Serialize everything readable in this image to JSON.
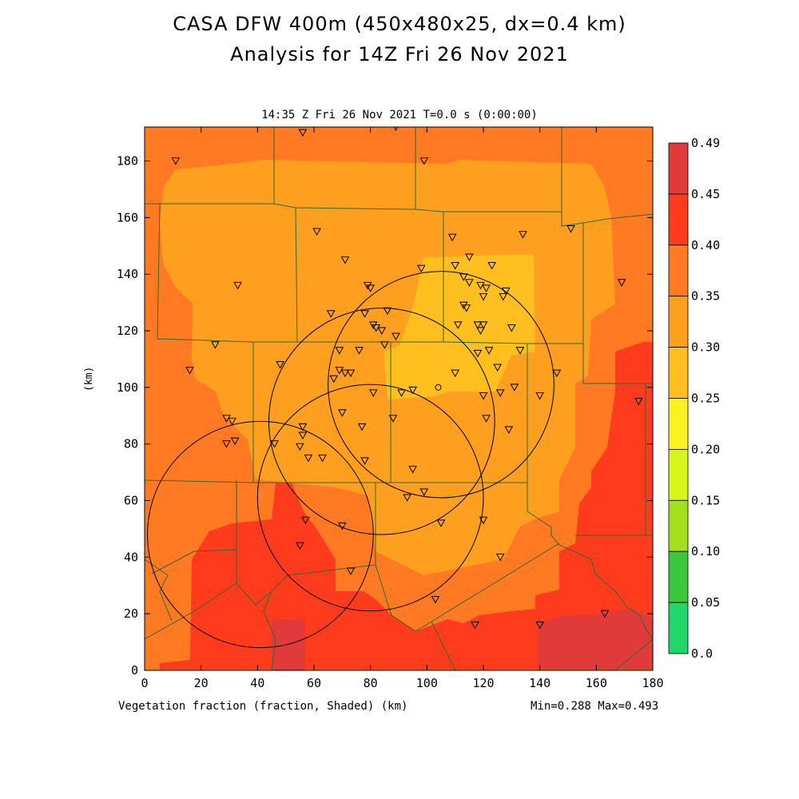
{
  "title_line1": "CASA DFW 400m (450x480x25, dx=0.4 km)",
  "title_line2": "Analysis for 14Z Fri 26 Nov 2021",
  "subtitle": "14:35 Z Fri 26 Nov 2021   T=0.0 s (0:00:00)",
  "footer_left": "Vegetation fraction (fraction, Shaded)  (km)",
  "footer_right": "Min=0.288 Max=0.493",
  "y_axis_label": "(km)",
  "x_ticks": [
    "0",
    "20",
    "40",
    "60",
    "80",
    "100",
    "120",
    "140",
    "160",
    "180"
  ],
  "y_ticks": [
    "0",
    "20",
    "40",
    "60",
    "80",
    "100",
    "120",
    "140",
    "160",
    "180"
  ],
  "colorbar": {
    "labels": [
      "0.49",
      "0.45",
      "0.40",
      "0.35",
      "0.30",
      "0.25",
      "0.20",
      "0.15",
      "0.10",
      "0.05",
      "0.0"
    ],
    "colors": [
      "#e03a3a",
      "#ff3b1e",
      "#ff7a22",
      "#ff9f1f",
      "#ffbf1f",
      "#fff020",
      "#d8f51c",
      "#a3e01e",
      "#3cc83c",
      "#22d66a",
      "#22e69a"
    ]
  },
  "field_colors": {
    "c035_040": "#ff7a22",
    "c030_035": "#ff9f1f",
    "c025_030": "#ffbf1f",
    "c040_045": "#ff3b1e",
    "c045_049": "#e03a3a",
    "county_lines": "#2e6b2e"
  },
  "radar_sites": [
    {
      "x": 105,
      "y": 101,
      "r": 40
    },
    {
      "x": 84,
      "y": 88,
      "r": 40
    },
    {
      "x": 41,
      "y": 48,
      "r": 40
    },
    {
      "x": 80,
      "y": 61,
      "r": 40
    }
  ],
  "stations": [
    [
      11,
      180
    ],
    [
      56,
      190
    ],
    [
      89,
      192
    ],
    [
      99,
      180
    ],
    [
      61,
      155
    ],
    [
      71,
      145
    ],
    [
      33,
      136
    ],
    [
      109,
      153
    ],
    [
      134,
      154
    ],
    [
      151,
      156
    ],
    [
      98,
      142
    ],
    [
      110,
      143
    ],
    [
      115,
      146
    ],
    [
      123,
      143
    ],
    [
      113,
      139
    ],
    [
      115,
      137
    ],
    [
      119,
      136
    ],
    [
      121,
      135
    ],
    [
      127,
      132
    ],
    [
      128,
      134
    ],
    [
      120,
      132
    ],
    [
      113,
      129
    ],
    [
      114,
      128
    ],
    [
      79,
      136
    ],
    [
      80,
      135
    ],
    [
      66,
      126
    ],
    [
      78,
      126
    ],
    [
      86,
      127
    ],
    [
      82,
      121
    ],
    [
      81,
      122
    ],
    [
      84,
      120
    ],
    [
      111,
      122
    ],
    [
      118,
      122
    ],
    [
      120,
      122
    ],
    [
      119,
      120
    ],
    [
      130,
      121
    ],
    [
      25,
      115
    ],
    [
      69,
      113
    ],
    [
      76,
      113
    ],
    [
      85,
      115
    ],
    [
      89,
      118
    ],
    [
      122,
      113
    ],
    [
      118,
      112
    ],
    [
      133,
      113
    ],
    [
      169,
      137
    ],
    [
      16,
      106
    ],
    [
      48,
      108
    ],
    [
      69,
      106
    ],
    [
      67,
      103
    ],
    [
      71,
      105
    ],
    [
      73,
      105
    ],
    [
      110,
      105
    ],
    [
      125,
      107
    ],
    [
      146,
      105
    ],
    [
      120,
      97
    ],
    [
      126,
      98
    ],
    [
      131,
      100
    ],
    [
      140,
      97
    ],
    [
      175,
      95
    ],
    [
      81,
      98
    ],
    [
      91,
      98
    ],
    [
      95,
      99
    ],
    [
      70,
      91
    ],
    [
      29,
      89
    ],
    [
      31,
      88
    ],
    [
      88,
      89
    ],
    [
      121,
      89
    ],
    [
      129,
      85
    ],
    [
      77,
      86
    ],
    [
      29,
      80
    ],
    [
      32,
      81
    ],
    [
      46,
      80
    ],
    [
      56,
      86
    ],
    [
      56,
      83
    ],
    [
      55,
      79
    ],
    [
      58,
      75
    ],
    [
      63,
      75
    ],
    [
      78,
      74
    ],
    [
      95,
      71
    ],
    [
      99,
      63
    ],
    [
      93,
      61
    ],
    [
      57,
      53
    ],
    [
      70,
      51
    ],
    [
      105,
      52
    ],
    [
      120,
      53
    ],
    [
      126,
      40
    ],
    [
      55,
      44
    ],
    [
      73,
      35
    ],
    [
      103,
      25
    ],
    [
      117,
      16
    ],
    [
      140,
      16
    ],
    [
      163,
      20
    ]
  ],
  "center_marker": [
    104,
    100
  ]
}
